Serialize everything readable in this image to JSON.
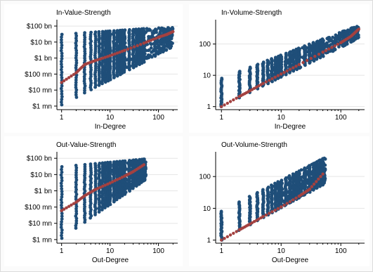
{
  "colors": {
    "raw_points": "#1f4e79",
    "fitted_points": "#a34140",
    "grid": "#e5e5e5",
    "axis": "#000000"
  },
  "chart_data": [
    {
      "type": "scatter",
      "title": "In-Value-Strength",
      "xlabel": "In-Degree",
      "ylabel": "",
      "x_scale": "log",
      "y_scale": "log",
      "xlim": [
        0.8,
        250
      ],
      "ylim": [
        0.6,
        250000
      ],
      "x_ticks": [
        1,
        10,
        100
      ],
      "x_tick_labels": [
        "1",
        "10",
        "100"
      ],
      "y_ticks": [
        1,
        10,
        100,
        1000,
        10000,
        100000
      ],
      "y_tick_labels": [
        "$1 mn",
        "$10 mn",
        "$100 mn",
        "$1 bn",
        "$10 bn",
        "$100 bn"
      ],
      "grid": true,
      "raw_cloud": {
        "x": [
          1,
          200
        ],
        "y_low": [
          1.2,
          5000
        ],
        "y_high": [
          30000,
          90000
        ],
        "low_edge_slope": 1.6
      },
      "fitted": {
        "x": [
          1,
          2,
          3,
          5,
          10,
          20,
          50,
          100,
          150,
          200
        ],
        "y": [
          30,
          120,
          400,
          700,
          1400,
          3000,
          8500,
          20000,
          30000,
          45000
        ]
      }
    },
    {
      "type": "scatter",
      "title": "In-Volume-Strength",
      "xlabel": "In-Degree",
      "ylabel": "",
      "x_scale": "log",
      "y_scale": "log",
      "xlim": [
        0.8,
        250
      ],
      "ylim": [
        0.8,
        600
      ],
      "x_ticks": [
        1,
        10,
        100
      ],
      "x_tick_labels": [
        "1",
        "10",
        "100"
      ],
      "y_ticks": [
        1,
        10,
        100
      ],
      "y_tick_labels": [
        "1",
        "10",
        "100"
      ],
      "grid": true,
      "raw_cloud": {
        "x": [
          1,
          200
        ],
        "y_low": [
          1,
          150
        ],
        "y_high": [
          8,
          400
        ],
        "low_edge_slope": 0.95
      },
      "fitted": {
        "x": [
          1,
          2,
          3,
          5,
          10,
          20,
          50,
          100,
          150,
          200
        ],
        "y": [
          1,
          2.1,
          3.2,
          5.5,
          11,
          22,
          55,
          110,
          180,
          300
        ]
      }
    },
    {
      "type": "scatter",
      "title": "Out-Value-Strength",
      "xlabel": "Out-Degree",
      "ylabel": "",
      "x_scale": "log",
      "y_scale": "log",
      "xlim": [
        0.8,
        250
      ],
      "ylim": [
        0.6,
        250000
      ],
      "x_ticks": [
        1,
        10,
        100
      ],
      "x_tick_labels": [
        "1",
        "10",
        "100"
      ],
      "y_ticks": [
        1,
        10,
        100,
        1000,
        10000,
        100000
      ],
      "y_tick_labels": [
        "$1 mn",
        "$10 mn",
        "$100 mn",
        "$1 bn",
        "$10 bn",
        "$100 bn"
      ],
      "grid": true,
      "raw_cloud": {
        "x": [
          1,
          55
        ],
        "y_low": [
          1.2,
          5000
        ],
        "y_high": [
          30000,
          90000
        ],
        "low_edge_slope": 2.2
      },
      "fitted": {
        "x": [
          1,
          2,
          3,
          5,
          10,
          20,
          30,
          50
        ],
        "y": [
          60,
          200,
          500,
          1200,
          3000,
          8000,
          15000,
          40000
        ]
      }
    },
    {
      "type": "scatter",
      "title": "Out-Volume-Strength",
      "xlabel": "Out-Degree",
      "ylabel": "",
      "x_scale": "log",
      "y_scale": "log",
      "xlim": [
        0.8,
        250
      ],
      "ylim": [
        0.8,
        600
      ],
      "x_ticks": [
        1,
        10,
        100
      ],
      "x_tick_labels": [
        "1",
        "10",
        "100"
      ],
      "y_ticks": [
        1,
        10,
        100
      ],
      "y_tick_labels": [
        "1",
        "10",
        "100"
      ],
      "grid": true,
      "raw_cloud": {
        "x": [
          1,
          55
        ],
        "y_low": [
          1,
          60
        ],
        "y_high": [
          8,
          400
        ],
        "low_edge_slope": 1.0
      },
      "fitted": {
        "x": [
          1,
          2,
          3,
          5,
          10,
          20,
          30,
          50
        ],
        "y": [
          1,
          2.1,
          3.2,
          5.5,
          11,
          24,
          40,
          120
        ]
      }
    }
  ]
}
